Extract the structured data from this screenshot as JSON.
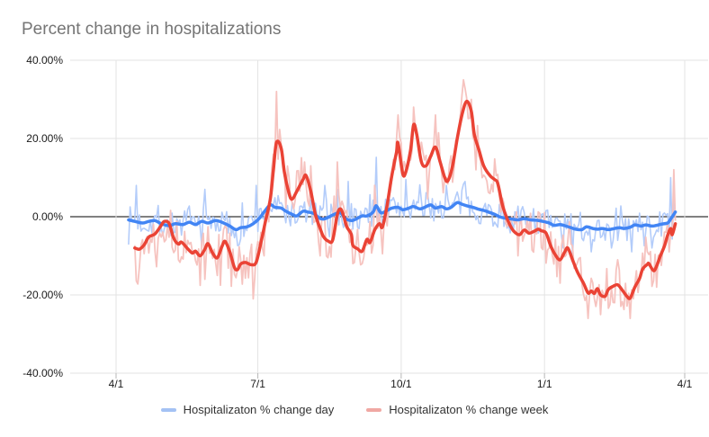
{
  "page": {
    "background": "#ffffff"
  },
  "chart_data": {
    "type": "line",
    "title": "Percent change in hospitalizations",
    "title_color": "#757575",
    "grid_color": "#e3e3e3",
    "zero_line_color": "#000000",
    "tick_color": "#b7b7b7",
    "legend_position": "bottom",
    "x_axis": {
      "tick_labels": [
        "4/1",
        "7/1",
        "10/1",
        "1/1",
        "4/1"
      ],
      "tick_days": [
        0,
        91,
        183,
        275,
        365
      ],
      "range_days": [
        0,
        365
      ]
    },
    "y_axis": {
      "tick_labels": [
        "40.00%",
        "20.00%",
        "0.00%",
        "-20.00%",
        "-40.00%"
      ],
      "tick_values": [
        40,
        20,
        0,
        -20,
        -40
      ],
      "range": [
        -40,
        40
      ],
      "unit": "%"
    },
    "series": [
      {
        "name": "Hospitalizaton % change day",
        "color": "#4285f4",
        "raw_color": "#b3ccfa",
        "swatch_color": "#a4c2f4",
        "raw_noise_amp": 3.6,
        "points": [
          [
            8,
            -0.8
          ],
          [
            12,
            -1.2
          ],
          [
            17,
            -1.6
          ],
          [
            21,
            -1.2
          ],
          [
            25,
            -1.0
          ],
          [
            29,
            -1.8
          ],
          [
            34,
            -2.3
          ],
          [
            38,
            -1.8
          ],
          [
            43,
            -2.0
          ],
          [
            47,
            -1.4
          ],
          [
            51,
            -2.0
          ],
          [
            55,
            -1.2
          ],
          [
            59,
            -1.6
          ],
          [
            64,
            -1.0
          ],
          [
            69,
            -1.6
          ],
          [
            73,
            -2.4
          ],
          [
            77,
            -3.3
          ],
          [
            80,
            -2.8
          ],
          [
            84,
            -2.6
          ],
          [
            88,
            -1.8
          ],
          [
            92,
            -0.4
          ],
          [
            95,
            1.2
          ],
          [
            99,
            3.0
          ],
          [
            102,
            2.4
          ],
          [
            106,
            2.2
          ],
          [
            109,
            1.4
          ],
          [
            113,
            0.6
          ],
          [
            116,
            0.2
          ],
          [
            120,
            1.4
          ],
          [
            123,
            1.2
          ],
          [
            127,
            0.8
          ],
          [
            130,
            -0.2
          ],
          [
            133,
            -0.6
          ],
          [
            137,
            0.0
          ],
          [
            140,
            0.6
          ],
          [
            144,
            1.0
          ],
          [
            147,
            -0.4
          ],
          [
            151,
            -1.0
          ],
          [
            154,
            -0.6
          ],
          [
            158,
            0.2
          ],
          [
            161,
            0.2
          ],
          [
            165,
            1.2
          ],
          [
            167,
            2.8
          ],
          [
            170,
            1.0
          ],
          [
            174,
            1.6
          ],
          [
            177,
            2.2
          ],
          [
            181,
            2.4
          ],
          [
            184,
            1.8
          ],
          [
            188,
            2.2
          ],
          [
            191,
            2.6
          ],
          [
            195,
            2.0
          ],
          [
            198,
            2.4
          ],
          [
            202,
            3.0
          ],
          [
            205,
            2.2
          ],
          [
            209,
            2.6
          ],
          [
            212,
            2.0
          ],
          [
            215,
            2.4
          ],
          [
            219,
            3.6
          ],
          [
            222,
            3.2
          ],
          [
            225,
            2.8
          ],
          [
            229,
            2.4
          ],
          [
            232,
            2.0
          ],
          [
            236,
            1.6
          ],
          [
            239,
            1.2
          ],
          [
            243,
            0.6
          ],
          [
            246,
            0.0
          ],
          [
            250,
            -0.4
          ],
          [
            254,
            -0.6
          ],
          [
            258,
            -0.8
          ],
          [
            262,
            -0.5
          ],
          [
            266,
            -0.8
          ],
          [
            270,
            -0.9
          ],
          [
            274,
            -1.2
          ],
          [
            278,
            -1.6
          ],
          [
            281,
            -2.2
          ],
          [
            285,
            -2.0
          ],
          [
            288,
            -2.3
          ],
          [
            292,
            -2.8
          ],
          [
            295,
            -3.2
          ],
          [
            299,
            -3.3
          ],
          [
            302,
            -2.6
          ],
          [
            306,
            -3.0
          ],
          [
            309,
            -3.2
          ],
          [
            312,
            -3.0
          ],
          [
            316,
            -3.3
          ],
          [
            319,
            -3.1
          ],
          [
            323,
            -2.8
          ],
          [
            326,
            -3.0
          ],
          [
            330,
            -2.7
          ],
          [
            333,
            -2.1
          ],
          [
            337,
            -2.4
          ],
          [
            340,
            -2.1
          ],
          [
            344,
            -2.4
          ],
          [
            347,
            -2.2
          ],
          [
            350,
            -1.9
          ],
          [
            354,
            -1.6
          ],
          [
            356,
            -0.6
          ],
          [
            359,
            1.2
          ]
        ],
        "raw_spikes": [
          [
            13,
            8
          ],
          [
            57,
            7
          ],
          [
            90,
            8
          ],
          [
            134,
            8
          ],
          [
            149,
            9
          ],
          [
            167,
            15.2
          ],
          [
            186,
            9.5
          ],
          [
            212,
            8
          ],
          [
            224,
            9
          ],
          [
            287,
            -8
          ],
          [
            293,
            -10
          ],
          [
            305,
            -9
          ],
          [
            318,
            -8
          ],
          [
            331,
            -9
          ],
          [
            344,
            -8
          ],
          [
            356,
            10
          ]
        ]
      },
      {
        "name": "Hospitalizaton % change week",
        "color": "#ea4335",
        "raw_color": "#f6c3bf",
        "swatch_color": "#f0a8a3",
        "raw_noise_amp": 5.4,
        "points": [
          [
            12,
            -8.0
          ],
          [
            15,
            -8.3
          ],
          [
            18,
            -7.2
          ],
          [
            21,
            -5.2
          ],
          [
            25,
            -4.4
          ],
          [
            29,
            -2.2
          ],
          [
            31,
            -1.2
          ],
          [
            34,
            -1.7
          ],
          [
            37,
            -5.5
          ],
          [
            40,
            -7.0
          ],
          [
            42,
            -6.5
          ],
          [
            46,
            -8.2
          ],
          [
            49,
            -9.3
          ],
          [
            51,
            -8.8
          ],
          [
            54,
            -10.0
          ],
          [
            57,
            -8.3
          ],
          [
            59,
            -6.9
          ],
          [
            62,
            -9.3
          ],
          [
            65,
            -10.5
          ],
          [
            68,
            -7.6
          ],
          [
            70,
            -6.3
          ],
          [
            73,
            -9.0
          ],
          [
            76,
            -13.0
          ],
          [
            78,
            -13.5
          ],
          [
            80,
            -12.1
          ],
          [
            83,
            -11.7
          ],
          [
            87,
            -12.3
          ],
          [
            90,
            -11.6
          ],
          [
            93,
            -6.6
          ],
          [
            96,
            -1.0
          ],
          [
            99,
            4.5
          ],
          [
            101,
            12.0
          ],
          [
            103,
            19.0
          ],
          [
            106,
            17.5
          ],
          [
            108,
            11.5
          ],
          [
            111,
            6.0
          ],
          [
            113,
            4.5
          ],
          [
            116,
            6.5
          ],
          [
            120,
            9.5
          ],
          [
            122,
            10.5
          ],
          [
            125,
            6.5
          ],
          [
            128,
            0.5
          ],
          [
            131,
            -3.0
          ],
          [
            133,
            -5.0
          ],
          [
            136,
            -6.2
          ],
          [
            139,
            -6.0
          ],
          [
            142,
            0.5
          ],
          [
            144,
            2.0
          ],
          [
            146,
            0.3
          ],
          [
            148,
            -2.5
          ],
          [
            151,
            -4.5
          ],
          [
            152,
            -7.3
          ],
          [
            155,
            -8.2
          ],
          [
            158,
            -8.8
          ],
          [
            161,
            -5.8
          ],
          [
            163,
            -6.6
          ],
          [
            166,
            -3.4
          ],
          [
            169,
            -1.8
          ],
          [
            171,
            -2.6
          ],
          [
            174,
            3.0
          ],
          [
            177,
            10.5
          ],
          [
            180,
            16.5
          ],
          [
            181,
            18.8
          ],
          [
            184,
            11.0
          ],
          [
            186,
            11.5
          ],
          [
            189,
            17.0
          ],
          [
            191,
            23.5
          ],
          [
            193,
            21.0
          ],
          [
            196,
            14.0
          ],
          [
            199,
            13.0
          ],
          [
            202,
            15.5
          ],
          [
            205,
            17.8
          ],
          [
            208,
            14.0
          ],
          [
            211,
            10.0
          ],
          [
            213,
            9.2
          ],
          [
            216,
            13.0
          ],
          [
            219,
            20.0
          ],
          [
            222,
            26.0
          ],
          [
            225,
            29.5
          ],
          [
            228,
            27.0
          ],
          [
            230,
            21.0
          ],
          [
            233,
            17.0
          ],
          [
            236,
            13.0
          ],
          [
            240,
            10.5
          ],
          [
            243,
            9.5
          ],
          [
            245,
            8.5
          ],
          [
            248,
            3.0
          ],
          [
            251,
            -0.5
          ],
          [
            254,
            -3.0
          ],
          [
            256,
            -4.0
          ],
          [
            259,
            -4.6
          ],
          [
            262,
            -3.4
          ],
          [
            265,
            -4.2
          ],
          [
            268,
            -3.8
          ],
          [
            271,
            -3.2
          ],
          [
            273,
            -3.6
          ],
          [
            276,
            -4.2
          ],
          [
            279,
            -7.5
          ],
          [
            282,
            -9.8
          ],
          [
            285,
            -11.0
          ],
          [
            288,
            -9.0
          ],
          [
            290,
            -8.0
          ],
          [
            293,
            -11.0
          ],
          [
            296,
            -14.0
          ],
          [
            300,
            -17.0
          ],
          [
            303,
            -19.5
          ],
          [
            305,
            -19.0
          ],
          [
            307,
            -19.6
          ],
          [
            309,
            -18.4
          ],
          [
            311,
            -20.0
          ],
          [
            314,
            -20.3
          ],
          [
            316,
            -18.6
          ],
          [
            319,
            -17.8
          ],
          [
            322,
            -17.4
          ],
          [
            325,
            -18.8
          ],
          [
            328,
            -20.4
          ],
          [
            330,
            -20.8
          ],
          [
            333,
            -18.0
          ],
          [
            336,
            -15.8
          ],
          [
            338,
            -13.4
          ],
          [
            341,
            -12.2
          ],
          [
            342,
            -12.0
          ],
          [
            345,
            -13.8
          ],
          [
            347,
            -12.6
          ],
          [
            349,
            -10.4
          ],
          [
            352,
            -7.5
          ],
          [
            354,
            -4.8
          ],
          [
            356,
            -3.0
          ],
          [
            357,
            -4.6
          ],
          [
            359,
            -1.8
          ]
        ],
        "raw_spikes": [
          [
            57,
            -16
          ],
          [
            65,
            -15
          ],
          [
            88,
            -21
          ],
          [
            95,
            -10
          ],
          [
            103,
            32
          ],
          [
            121,
            14
          ],
          [
            125,
            13
          ],
          [
            131,
            -10
          ],
          [
            142,
            14
          ],
          [
            152,
            -12
          ],
          [
            158,
            -12
          ],
          [
            166,
            8
          ],
          [
            181,
            26
          ],
          [
            191,
            28
          ],
          [
            205,
            26
          ],
          [
            223,
            35
          ],
          [
            231,
            12
          ],
          [
            258,
            -10
          ],
          [
            285,
            -17
          ],
          [
            303,
            -26
          ],
          [
            311,
            -25
          ],
          [
            322,
            -11
          ],
          [
            330,
            -26
          ],
          [
            347,
            -18
          ],
          [
            355,
            -9
          ],
          [
            358,
            12
          ]
        ]
      }
    ]
  }
}
